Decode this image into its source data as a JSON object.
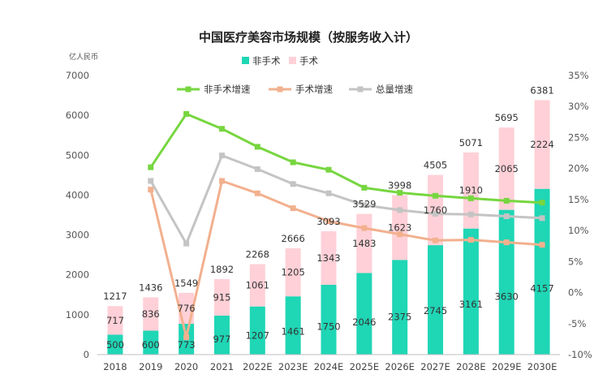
{
  "chart_data": {
    "type": "bar",
    "title": "中国医疗美容市场规模（按服务收入计）",
    "y_unit_label": "亿人民币",
    "categories": [
      "2018",
      "2019",
      "2020",
      "2021",
      "2022E",
      "2023E",
      "2024E",
      "2025E",
      "2026E",
      "2027E",
      "2028E",
      "2029E",
      "2030E"
    ],
    "ylim": [
      0,
      7000
    ],
    "y_ticks": [
      "0",
      "1000",
      "2000",
      "3000",
      "4000",
      "5000",
      "6000",
      "7000"
    ],
    "y2lim": [
      -10,
      35
    ],
    "y2_ticks": [
      "-10%",
      "-5%",
      "0%",
      "5%",
      "10%",
      "15%",
      "20%",
      "25%",
      "30%",
      "35%"
    ],
    "bar_series": [
      {
        "name": "非手术",
        "color": "#1fd6b5",
        "values": [
          500,
          600,
          773,
          977,
          1207,
          1461,
          1750,
          2046,
          2375,
          2745,
          3161,
          3630,
          4157
        ]
      },
      {
        "name": "手术",
        "color": "#ffd0d7",
        "values": [
          717,
          836,
          776,
          915,
          1061,
          1205,
          1343,
          1483,
          1623,
          1760,
          1910,
          2065,
          2224
        ]
      }
    ],
    "totals": [
      1217,
      1436,
      1549,
      1892,
      2268,
      2666,
      3093,
      3529,
      3998,
      4505,
      5071,
      5695,
      6381
    ],
    "line_series": [
      {
        "name": "非手术增速",
        "color": "#77d640",
        "values": [
          null,
          20.2,
          28.8,
          26.4,
          23.5,
          21.0,
          19.8,
          16.9,
          16.1,
          15.6,
          15.2,
          14.8,
          14.5
        ]
      },
      {
        "name": "手术增速",
        "color": "#f2b08e",
        "values": [
          null,
          16.6,
          -7.2,
          18.0,
          16.0,
          13.6,
          11.5,
          10.4,
          9.4,
          8.4,
          8.5,
          8.1,
          7.7
        ]
      },
      {
        "name": "总量增速",
        "color": "#c4c4c4",
        "values": [
          null,
          18.0,
          7.9,
          22.1,
          19.9,
          17.5,
          16.0,
          14.1,
          13.3,
          12.7,
          12.6,
          12.3,
          12.0
        ]
      }
    ],
    "legend_top": [
      "非手术",
      "手术"
    ],
    "legend_lines": [
      "非手术增速",
      "手术增速",
      "总量增速"
    ]
  }
}
